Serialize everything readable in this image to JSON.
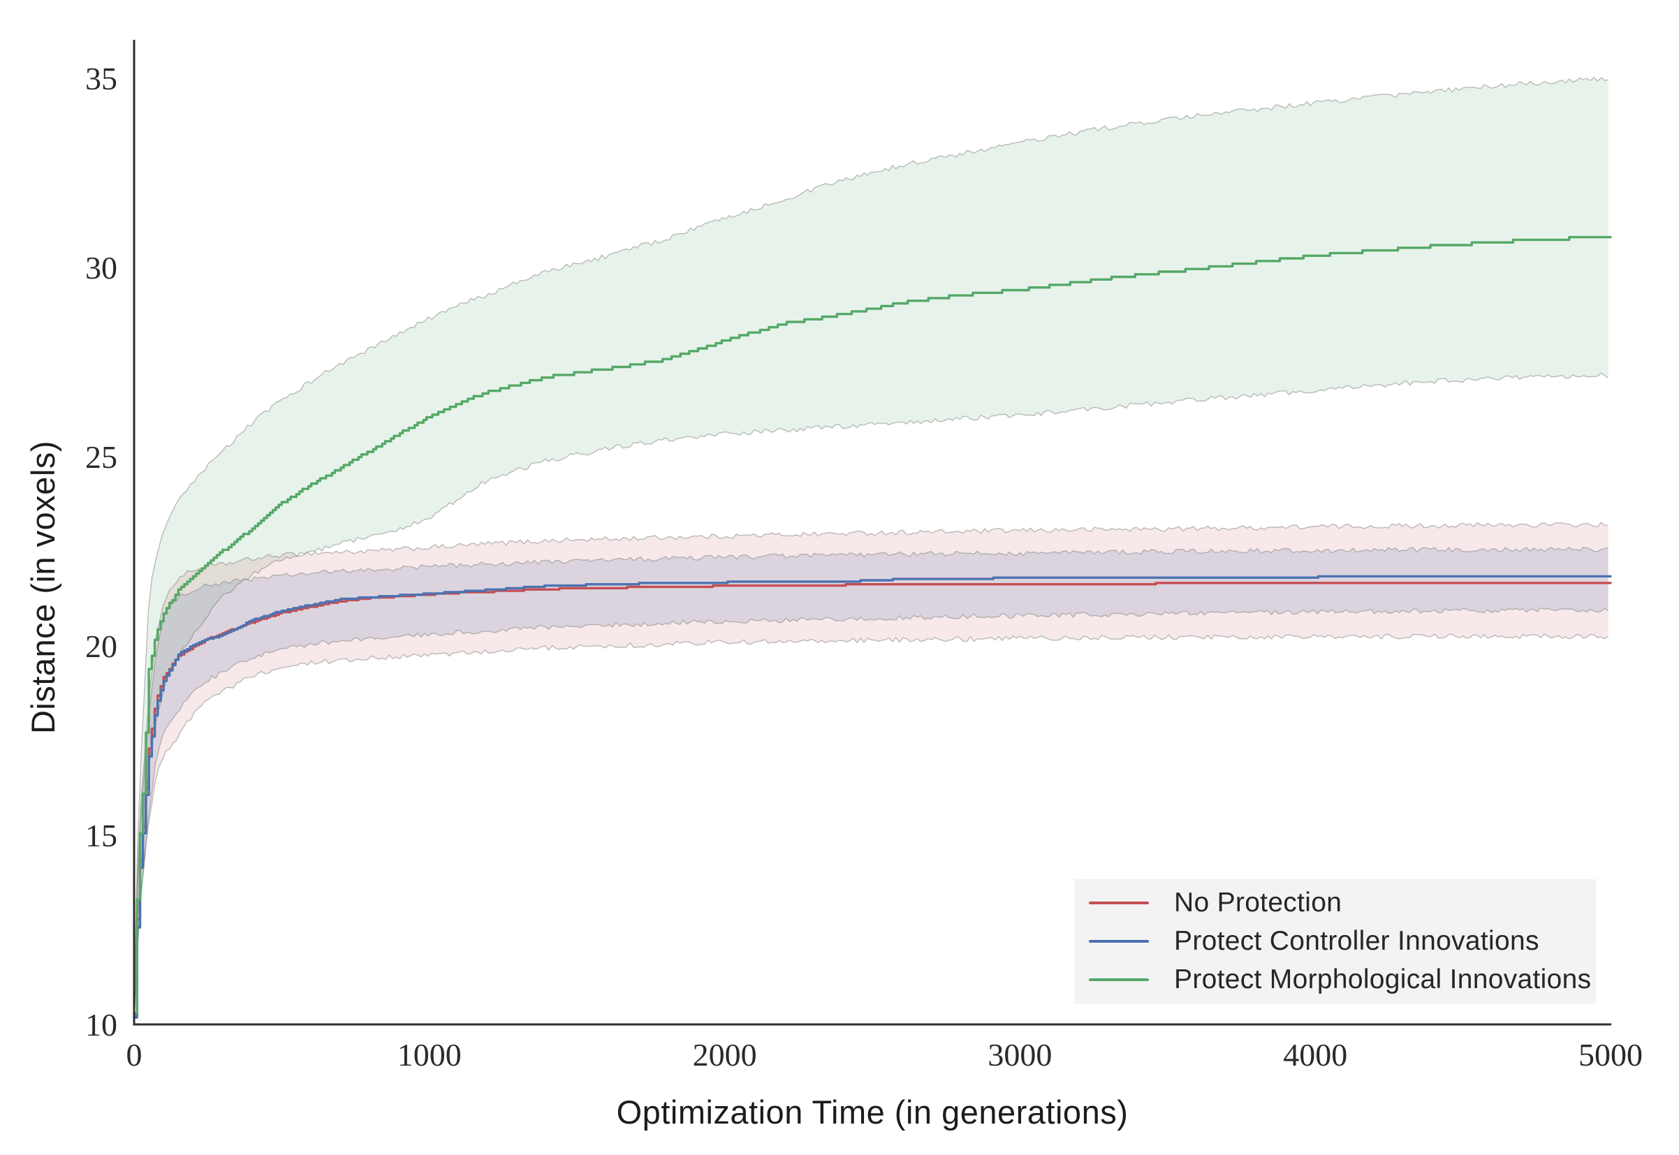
{
  "chart_data": {
    "type": "line",
    "title": "",
    "xlabel": "Optimization Time (in generations)",
    "ylabel": "Distance (in voxels)",
    "xlim": [
      0,
      5000
    ],
    "ylim": [
      10,
      35
    ],
    "x_ticks": [
      0,
      1000,
      2000,
      3000,
      4000,
      5000
    ],
    "y_ticks": [
      10,
      15,
      20,
      25,
      30,
      35
    ],
    "grid": false,
    "legend_position": "lower right",
    "band_style": "translucent fill with thin jagged gray edges",
    "x": [
      0,
      5,
      10,
      20,
      30,
      50,
      75,
      100,
      150,
      200,
      250,
      300,
      400,
      500,
      600,
      700,
      800,
      900,
      1000,
      1100,
      1200,
      1400,
      1600,
      1800,
      2000,
      2200,
      2400,
      2600,
      2800,
      3000,
      3300,
      3600,
      4000,
      4400,
      4700,
      5000
    ],
    "series": [
      {
        "name": "No Protection",
        "color": "#c44e52",
        "band_fill": "rgba(196,78,82,0.13)",
        "mean": [
          10.25,
          11.45,
          12.8,
          14.35,
          15.25,
          17.3,
          18.6,
          19.2,
          19.75,
          20.0,
          20.2,
          20.35,
          20.65,
          20.9,
          21.05,
          21.2,
          21.28,
          21.33,
          21.38,
          21.42,
          21.45,
          21.52,
          21.55,
          21.58,
          21.6,
          21.61,
          21.63,
          21.64,
          21.65,
          21.66,
          21.66,
          21.67,
          21.67,
          21.67,
          21.67,
          21.67
        ],
        "hi": [
          10.4,
          12.1,
          13.8,
          15.6,
          16.55,
          18.6,
          20.3,
          21.2,
          21.8,
          22.0,
          22.1,
          22.15,
          22.3,
          22.4,
          22.45,
          22.48,
          22.5,
          22.55,
          22.6,
          22.65,
          22.7,
          22.78,
          22.82,
          22.87,
          22.9,
          22.94,
          22.97,
          23.0,
          23.02,
          23.05,
          23.08,
          23.1,
          23.15,
          23.18,
          23.2,
          23.2
        ],
        "lo": [
          10.1,
          10.9,
          11.9,
          13.2,
          14.0,
          15.4,
          16.6,
          17.15,
          17.6,
          18.2,
          18.55,
          18.8,
          19.2,
          19.45,
          19.55,
          19.62,
          19.68,
          19.72,
          19.75,
          19.8,
          19.85,
          19.95,
          20.0,
          20.05,
          20.1,
          20.12,
          20.14,
          20.16,
          20.18,
          20.2,
          20.22,
          20.23,
          20.24,
          20.25,
          20.25,
          20.25
        ]
      },
      {
        "name": "Protect Controller Innovations",
        "color": "#4c72b0",
        "band_fill": "rgba(76,114,176,0.16)",
        "mean": [
          10.2,
          11.35,
          12.6,
          14.15,
          15.05,
          17.1,
          18.45,
          19.1,
          19.8,
          20.05,
          20.2,
          20.3,
          20.7,
          20.95,
          21.1,
          21.25,
          21.3,
          21.35,
          21.4,
          21.45,
          21.5,
          21.6,
          21.65,
          21.68,
          21.7,
          21.71,
          21.72,
          21.78,
          21.8,
          21.81,
          21.82,
          21.83,
          21.84,
          21.85,
          21.85,
          21.85
        ],
        "hi": [
          10.35,
          11.9,
          13.5,
          15.3,
          16.2,
          18.2,
          19.8,
          20.8,
          21.3,
          21.5,
          21.6,
          21.65,
          21.78,
          21.85,
          21.92,
          21.97,
          22.0,
          22.05,
          22.1,
          22.13,
          22.16,
          22.22,
          22.27,
          22.3,
          22.35,
          22.37,
          22.4,
          22.42,
          22.44,
          22.45,
          22.48,
          22.5,
          22.52,
          22.54,
          22.55,
          22.55
        ],
        "lo": [
          10.1,
          10.85,
          11.8,
          13.1,
          13.9,
          15.6,
          17.0,
          17.7,
          18.3,
          18.8,
          19.1,
          19.3,
          19.7,
          19.9,
          20.05,
          20.15,
          20.2,
          20.25,
          20.3,
          20.35,
          20.4,
          20.5,
          20.55,
          20.6,
          20.65,
          20.68,
          20.72,
          20.75,
          20.78,
          20.8,
          20.83,
          20.86,
          20.9,
          20.92,
          20.94,
          20.95
        ]
      },
      {
        "name": "Protect Morphological Innovations",
        "color": "#55a868",
        "band_fill": "rgba(85,168,104,0.14)",
        "mean": [
          10.3,
          11.9,
          13.3,
          15.1,
          16.1,
          19.4,
          20.4,
          20.9,
          21.5,
          21.9,
          22.25,
          22.55,
          23.15,
          23.8,
          24.3,
          24.75,
          25.2,
          25.65,
          26.1,
          26.45,
          26.75,
          27.15,
          27.35,
          27.6,
          28.1,
          28.55,
          28.8,
          29.1,
          29.3,
          29.45,
          29.75,
          30.0,
          30.35,
          30.6,
          30.75,
          30.85
        ],
        "hi": [
          10.45,
          12.6,
          14.4,
          16.6,
          17.9,
          21.3,
          22.4,
          23.0,
          23.85,
          24.3,
          24.75,
          25.15,
          25.9,
          26.5,
          27.0,
          27.45,
          27.85,
          28.25,
          28.65,
          29.0,
          29.3,
          29.9,
          30.3,
          30.75,
          31.3,
          31.8,
          32.3,
          32.7,
          33.0,
          33.3,
          33.7,
          34.0,
          34.35,
          34.65,
          34.85,
          35.0
        ],
        "lo": [
          10.2,
          11.3,
          12.4,
          13.9,
          14.7,
          16.9,
          18.0,
          18.9,
          19.8,
          20.3,
          20.8,
          21.3,
          21.9,
          22.3,
          22.5,
          22.7,
          22.9,
          23.1,
          23.4,
          23.9,
          24.4,
          24.9,
          25.2,
          25.45,
          25.6,
          25.7,
          25.8,
          25.9,
          26.0,
          26.1,
          26.3,
          26.5,
          26.75,
          27.0,
          27.1,
          27.15
        ]
      }
    ]
  },
  "axes": {
    "xlabel": "Optimization Time (in generations)",
    "ylabel": "Distance (in voxels)",
    "x_tick_labels": [
      "0",
      "1000",
      "2000",
      "3000",
      "4000",
      "5000"
    ],
    "y_tick_labels": [
      "10",
      "15",
      "20",
      "25",
      "30",
      "35"
    ]
  },
  "legend": {
    "items": [
      {
        "label": "No Protection",
        "color": "#c44e52"
      },
      {
        "label": "Protect Controller Innovations",
        "color": "#4c72b0"
      },
      {
        "label": "Protect Morphological Innovations",
        "color": "#55a868"
      }
    ],
    "background": "#f3f3f3"
  },
  "colors": {
    "spine": "#2e2e2e",
    "tick_text": "#2a2a2a",
    "band_edge": "rgba(125,125,125,0.5)"
  }
}
